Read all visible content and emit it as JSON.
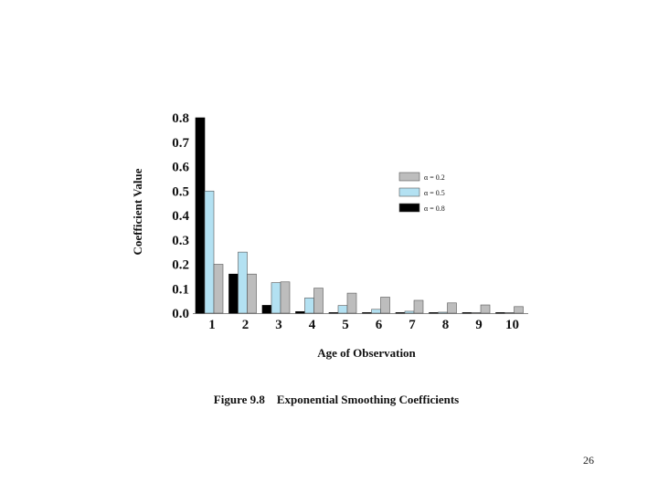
{
  "chart_data": {
    "type": "bar",
    "categories": [
      "1",
      "2",
      "3",
      "4",
      "5",
      "6",
      "7",
      "8",
      "9",
      "10"
    ],
    "series": [
      {
        "name": "α = 0.8",
        "color": "#000000",
        "values": [
          0.8,
          0.16,
          0.032,
          0.0064,
          0.00128,
          0.000256,
          5.12e-05,
          1e-05,
          2e-06,
          4e-07
        ]
      },
      {
        "name": "α = 0.5",
        "color": "#b3e1f2",
        "values": [
          0.5,
          0.25,
          0.125,
          0.0625,
          0.03125,
          0.015625,
          0.0078,
          0.0039,
          0.002,
          0.001
        ]
      },
      {
        "name": "α = 0.2",
        "color": "#bdbdbd",
        "values": [
          0.2,
          0.16,
          0.128,
          0.1024,
          0.0819,
          0.0655,
          0.0524,
          0.0419,
          0.0336,
          0.0268
        ]
      }
    ],
    "legend_order": [
      "α = 0.2",
      "α = 0.5",
      "α = 0.8"
    ],
    "legend_position": "right",
    "ylim": [
      0,
      0.8
    ],
    "yticks": [
      "0.0",
      "0.1",
      "0.2",
      "0.3",
      "0.4",
      "0.5",
      "0.6",
      "0.7",
      "0.8"
    ],
    "xlabel": "Age of Observation",
    "ylabel": "Coefficient Value",
    "caption": "Figure 9.8    Exponential Smoothing Coefficients",
    "grid": false
  },
  "page_number": "26"
}
